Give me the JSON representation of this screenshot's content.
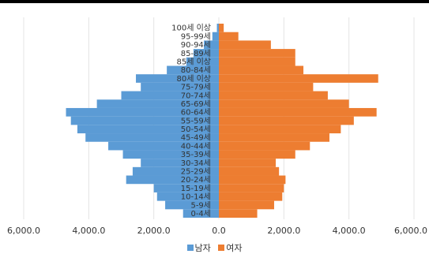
{
  "chart_data": {
    "type": "bar",
    "orientation": "horizontal",
    "title": "",
    "xlabel": "",
    "ylabel": "",
    "xlim": [
      -6000,
      6000
    ],
    "x_ticks": [
      -6000,
      -4000,
      -2000,
      0,
      2000,
      4000,
      6000
    ],
    "x_tick_labels": [
      "6,000.0",
      "4,000.0",
      "2,000.0",
      "0.0",
      "2,000.0",
      "4,000.0",
      "6,000.0"
    ],
    "grid": true,
    "legend_position": "bottom",
    "categories": [
      "0-4세",
      "5-9세",
      "10-14세",
      "15-19세",
      "20-24세",
      "25-29세",
      "30-34세",
      "35-39세",
      "40-44세",
      "45-49세",
      "50-54세",
      "55-59세",
      "60-64세",
      "65-69세",
      "70-74세",
      "75-79세",
      "80세 이상",
      "80-84세",
      "85세 이상",
      "85-89세",
      "90-94세",
      "95-99세",
      "100세 이상"
    ],
    "series": [
      {
        "name": "남자",
        "color": "#5b9bd5",
        "values": [
          1100,
          1650,
          1900,
          2000,
          2850,
          2650,
          2400,
          2950,
          3400,
          4100,
          4350,
          4550,
          4700,
          3750,
          3000,
          2400,
          2550,
          1600,
          1000,
          780,
          460,
          200,
          60
        ]
      },
      {
        "name": "여자",
        "color": "#ed7d31",
        "values": [
          1180,
          1700,
          1950,
          2000,
          2050,
          1850,
          1750,
          2350,
          2800,
          3400,
          3750,
          4150,
          4850,
          4000,
          3350,
          2900,
          4900,
          2600,
          2350,
          2350,
          1600,
          600,
          150
        ]
      }
    ]
  }
}
